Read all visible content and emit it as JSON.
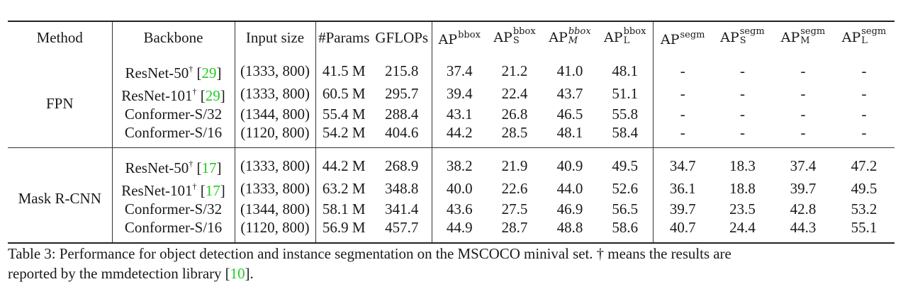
{
  "table": {
    "headers": {
      "method": "Method",
      "backbone": "Backbone",
      "input_size": "Input size",
      "params": "#Params",
      "gflops": "GFLOPs",
      "ap_bbox": {
        "base": "AP",
        "sup": "bbox",
        "sub": ""
      },
      "ap_bbox_s": {
        "base": "AP",
        "sup": "bbox",
        "sub": "S"
      },
      "ap_bbox_m": {
        "base": "AP",
        "sup": "bbox",
        "sub": "M"
      },
      "ap_bbox_l": {
        "base": "AP",
        "sup": "bbox",
        "sub": "L"
      },
      "ap_segm": {
        "base": "AP",
        "sup": "segm",
        "sub": ""
      },
      "ap_segm_s": {
        "base": "AP",
        "sup": "segm",
        "sub": "S"
      },
      "ap_segm_m": {
        "base": "AP",
        "sup": "segm",
        "sub": "M"
      },
      "ap_segm_l": {
        "base": "AP",
        "sup": "segm",
        "sub": "L"
      }
    },
    "groups": [
      {
        "method": "FPN",
        "rows": [
          {
            "backbone": "ResNet-50",
            "dagger": "†",
            "cite": "29",
            "input_size": "(1333, 800)",
            "params": "41.5 M",
            "gflops": "215.8",
            "ap_bbox": "37.4",
            "ap_bbox_s": "21.2",
            "ap_bbox_m": "41.0",
            "ap_bbox_l": "48.1",
            "ap_segm": "-",
            "ap_segm_s": "-",
            "ap_segm_m": "-",
            "ap_segm_l": "-"
          },
          {
            "backbone": "ResNet-101",
            "dagger": "†",
            "cite": "29",
            "input_size": "(1333, 800)",
            "params": "60.5 M",
            "gflops": "295.7",
            "ap_bbox": "39.4",
            "ap_bbox_s": "22.4",
            "ap_bbox_m": "43.7",
            "ap_bbox_l": "51.1",
            "ap_segm": "-",
            "ap_segm_s": "-",
            "ap_segm_m": "-",
            "ap_segm_l": "-"
          },
          {
            "backbone": "Conformer-S/32",
            "dagger": "",
            "cite": "",
            "input_size": "(1344, 800)",
            "params": "55.4 M",
            "gflops": "288.4",
            "ap_bbox": "43.1",
            "ap_bbox_s": "26.8",
            "ap_bbox_m": "46.5",
            "ap_bbox_l": "55.8",
            "ap_segm": "-",
            "ap_segm_s": "-",
            "ap_segm_m": "-",
            "ap_segm_l": "-"
          },
          {
            "backbone": "Conformer-S/16",
            "dagger": "",
            "cite": "",
            "input_size": "(1120, 800)",
            "params": "54.2 M",
            "gflops": "404.6",
            "ap_bbox": "44.2",
            "ap_bbox_s": "28.5",
            "ap_bbox_m": "48.1",
            "ap_bbox_l": "58.4",
            "ap_segm": "-",
            "ap_segm_s": "-",
            "ap_segm_m": "-",
            "ap_segm_l": "-"
          }
        ]
      },
      {
        "method": "Mask R-CNN",
        "rows": [
          {
            "backbone": "ResNet-50",
            "dagger": "†",
            "cite": "17",
            "input_size": "(1333, 800)",
            "params": "44.2 M",
            "gflops": "268.9",
            "ap_bbox": "38.2",
            "ap_bbox_s": "21.9",
            "ap_bbox_m": "40.9",
            "ap_bbox_l": "49.5",
            "ap_segm": "34.7",
            "ap_segm_s": "18.3",
            "ap_segm_m": "37.4",
            "ap_segm_l": "47.2"
          },
          {
            "backbone": "ResNet-101",
            "dagger": "†",
            "cite": "17",
            "input_size": "(1333, 800)",
            "params": "63.2 M",
            "gflops": "348.8",
            "ap_bbox": "40.0",
            "ap_bbox_s": "22.6",
            "ap_bbox_m": "44.0",
            "ap_bbox_l": "52.6",
            "ap_segm": "36.1",
            "ap_segm_s": "18.8",
            "ap_segm_m": "39.7",
            "ap_segm_l": "49.5"
          },
          {
            "backbone": "Conformer-S/32",
            "dagger": "",
            "cite": "",
            "input_size": "(1344, 800)",
            "params": "58.1 M",
            "gflops": "341.4",
            "ap_bbox": "43.6",
            "ap_bbox_s": "27.5",
            "ap_bbox_m": "46.9",
            "ap_bbox_l": "56.5",
            "ap_segm": "39.7",
            "ap_segm_s": "23.5",
            "ap_segm_m": "42.8",
            "ap_segm_l": "53.2"
          },
          {
            "backbone": "Conformer-S/16",
            "dagger": "",
            "cite": "",
            "input_size": "(1120, 800)",
            "params": "56.9 M",
            "gflops": "457.7",
            "ap_bbox": "44.9",
            "ap_bbox_s": "28.7",
            "ap_bbox_m": "48.8",
            "ap_bbox_l": "58.6",
            "ap_segm": "40.7",
            "ap_segm_s": "24.4",
            "ap_segm_m": "44.3",
            "ap_segm_l": "55.1"
          }
        ]
      }
    ]
  },
  "caption": {
    "line1": "Table 3: Performance for object detection and instance segmentation on the MSCOCO minival set. † means the results are",
    "line2_prefix": "reported by the mmdetection library [",
    "line2_cite": "10",
    "line2_suffix": "]."
  },
  "colors": {
    "citation": "#22cc22",
    "text": "#1a1a1a"
  }
}
